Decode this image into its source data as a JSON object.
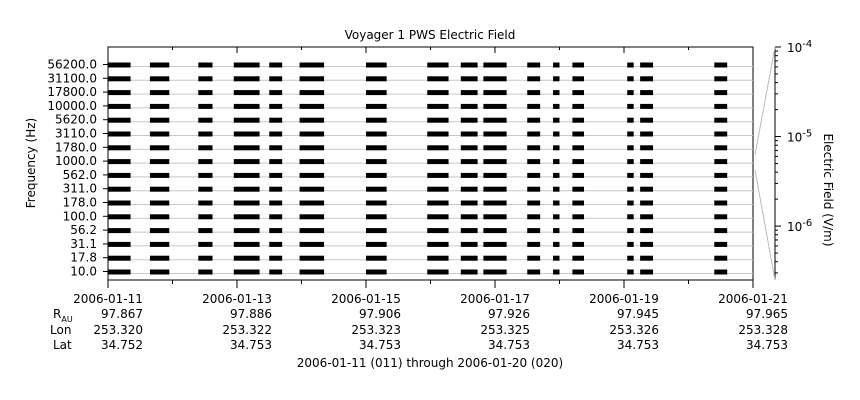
{
  "chart_data": {
    "type": "heatmap",
    "title": "Voyager 1 PWS Electric Field",
    "ylabel": "Frequency (Hz)",
    "colorbar_label": "Electric Field (V/m)",
    "footer": "2006-01-11 (011) through 2006-01-20 (020)",
    "frequency_channels": [
      "56200.0",
      "31100.0",
      "17800.0",
      "10000.0",
      "5620.0",
      "3110.0",
      "1780.0",
      "1000.0",
      "562.0",
      "311.0",
      "178.0",
      "100.0",
      "56.2",
      "31.1",
      "17.8",
      "10.0"
    ],
    "colorbar": {
      "scale": "log",
      "range": [
        2.5e-07,
        0.0001
      ],
      "ticks": [
        {
          "value": 0.0001,
          "base": "10",
          "exp": "-4"
        },
        {
          "value": 1e-05,
          "base": "10",
          "exp": "-5"
        },
        {
          "value": 1e-06,
          "base": "10",
          "exp": "-6"
        }
      ]
    },
    "x_ticks": [
      {
        "date": "2006-01-11",
        "r_au": "97.867",
        "lon": "253.320",
        "lat": "34.752"
      },
      {
        "date": "2006-01-13",
        "r_au": "97.886",
        "lon": "253.322",
        "lat": "34.753"
      },
      {
        "date": "2006-01-15",
        "r_au": "97.906",
        "lon": "253.323",
        "lat": "34.753"
      },
      {
        "date": "2006-01-17",
        "r_au": "97.926",
        "lon": "253.325",
        "lat": "34.753"
      },
      {
        "date": "2006-01-19",
        "r_au": "97.945",
        "lon": "253.326",
        "lat": "34.753"
      },
      {
        "date": "2006-01-21",
        "r_au": "97.965",
        "lon": "253.328",
        "lat": "34.753"
      }
    ],
    "x_range_days": [
      0,
      10
    ],
    "ephemeris_labels": {
      "r": "R",
      "r_sub": "AU",
      "lon": "Lon",
      "lat": "Lat"
    },
    "data_segments_days": [
      [
        0.0,
        0.35
      ],
      [
        0.65,
        0.95
      ],
      [
        1.4,
        1.62
      ],
      [
        1.95,
        2.35
      ],
      [
        2.5,
        2.7
      ],
      [
        2.97,
        3.35
      ],
      [
        4.0,
        4.32
      ],
      [
        4.95,
        5.28
      ],
      [
        5.47,
        5.73
      ],
      [
        5.82,
        6.18
      ],
      [
        6.5,
        6.7
      ],
      [
        6.9,
        7.0
      ],
      [
        7.2,
        7.38
      ],
      [
        8.05,
        8.15
      ],
      [
        8.25,
        8.45
      ],
      [
        9.4,
        9.6
      ]
    ]
  }
}
